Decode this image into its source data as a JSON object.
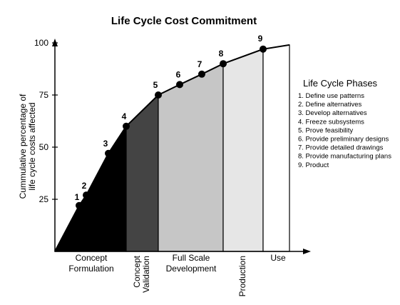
{
  "chart_data": {
    "type": "area",
    "title": "Life Cycle Cost Commitment",
    "ylabel": "Cummulative percentage of life cycle costs affected",
    "xlabel": "",
    "ylim": [
      0,
      100
    ],
    "yticks": [
      25,
      50,
      75,
      100
    ],
    "grid": false,
    "legend_position": "right",
    "points": [
      {
        "label": "1",
        "value": 22
      },
      {
        "label": "2",
        "value": 27
      },
      {
        "label": "3",
        "value": 47
      },
      {
        "label": "4",
        "value": 60
      },
      {
        "label": "5",
        "value": 75
      },
      {
        "label": "6",
        "value": 80
      },
      {
        "label": "7",
        "value": 85
      },
      {
        "label": "8",
        "value": 90
      },
      {
        "label": "9",
        "value": 97
      }
    ],
    "phases": [
      {
        "name": "Concept Formulation",
        "lines": [
          "Concept",
          "Formulation"
        ],
        "shade": "#000000"
      },
      {
        "name": "Concept Validation",
        "lines": [
          "Concept",
          "Validation"
        ],
        "shade": "#444444"
      },
      {
        "name": "Full Scale Development",
        "lines": [
          "Full Scale",
          "Development"
        ],
        "shade": "#c6c6c6"
      },
      {
        "name": "Production",
        "lines": [
          "Production"
        ],
        "shade": "#e6e6e6"
      },
      {
        "name": "Use",
        "lines": [
          "Use"
        ],
        "shade": "#ffffff"
      }
    ],
    "legend": {
      "title": "Life Cycle Phases",
      "items": [
        "1. Define use patterns",
        "2. Define alternatives",
        "3. Develop alternatives",
        "4. Freeze subsystems",
        "5. Prove feasibility",
        "6. Provide preliminary designs",
        "7. Provide detailed drawings",
        "8. Provide manufacturing plans",
        "9. Product"
      ]
    }
  }
}
